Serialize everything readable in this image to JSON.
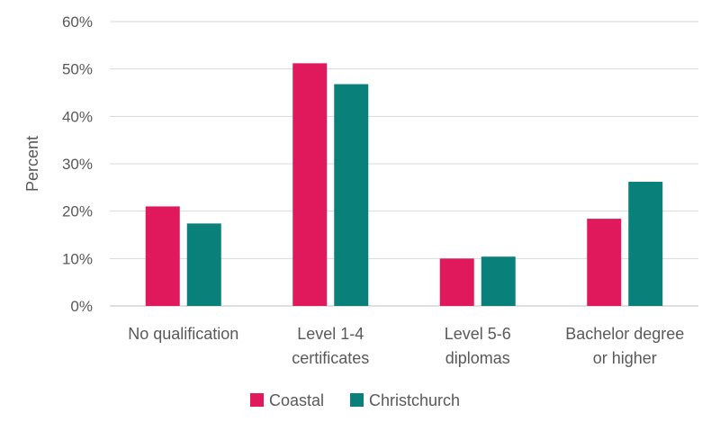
{
  "chart_data": {
    "type": "bar",
    "categories": [
      [
        "No qualification"
      ],
      [
        "Level 1-4",
        "certificates"
      ],
      [
        "Level 5-6",
        "diplomas"
      ],
      [
        "Bachelor degree",
        "or higher"
      ]
    ],
    "series": [
      {
        "name": "Coastal",
        "color": "#e0185c",
        "values": [
          21,
          51.2,
          10,
          18.4
        ]
      },
      {
        "name": "Christchurch",
        "color": "#0a807a",
        "values": [
          17.4,
          46.8,
          10.4,
          26.2
        ]
      }
    ],
    "ylabel": "Percent",
    "ylim": [
      0,
      60
    ],
    "yticks": [
      "0%",
      "10%",
      "20%",
      "30%",
      "40%",
      "50%",
      "60%"
    ],
    "grid": true,
    "legend": "bottom"
  }
}
